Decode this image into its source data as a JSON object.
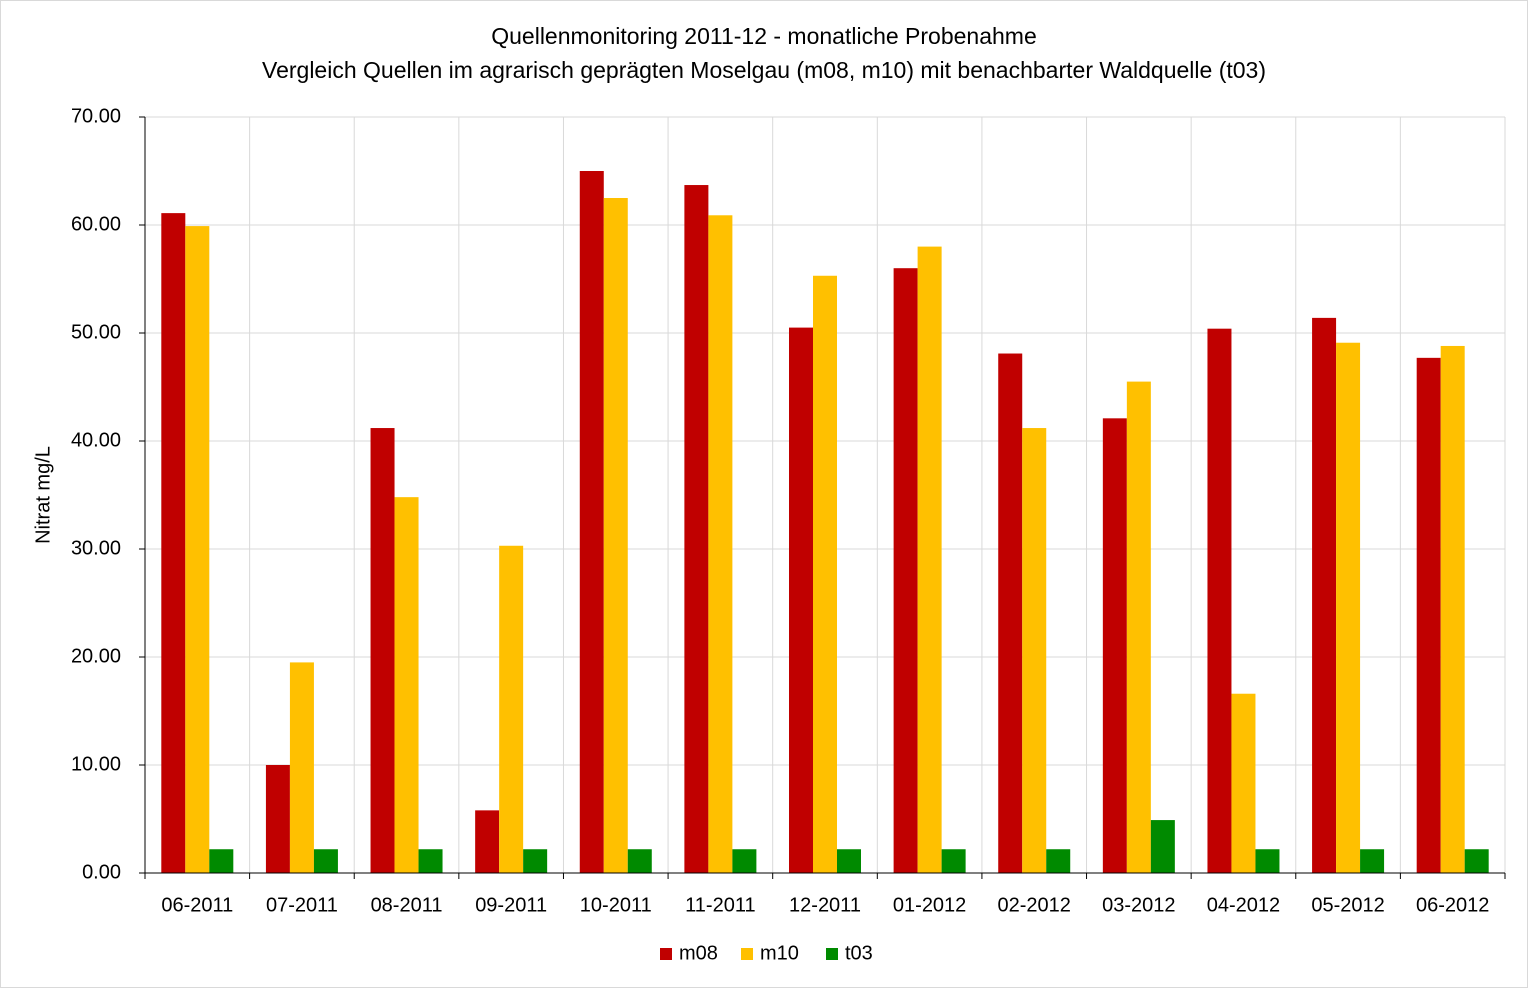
{
  "chart_data": {
    "type": "bar",
    "title": "Quellenmonitoring 2011-12 - monatliche Probenahme",
    "subtitle": "Vergleich Quellen im agrarisch geprägten Moselgau (m08, m10) mit benachbarter Waldquelle (t03)",
    "y_label": "Nitrat mg/L",
    "categories": [
      "06-2011",
      "07-2011",
      "08-2011",
      "09-2011",
      "10-2011",
      "11-2011",
      "12-2011",
      "01-2012",
      "02-2012",
      "03-2012",
      "04-2012",
      "05-2012",
      "06-2012"
    ],
    "series": [
      {
        "name": "m08",
        "color": "#c00000",
        "values": [
          61.1,
          10.0,
          41.2,
          5.8,
          65.0,
          63.7,
          50.5,
          56.0,
          48.1,
          42.1,
          50.4,
          51.4,
          47.7
        ]
      },
      {
        "name": "m10",
        "color": "#ffc000",
        "values": [
          59.9,
          19.5,
          34.8,
          30.3,
          62.5,
          60.9,
          55.3,
          58.0,
          41.2,
          45.5,
          16.6,
          49.1,
          48.8
        ]
      },
      {
        "name": "t03",
        "color": "#008a00",
        "values": [
          2.2,
          2.2,
          2.2,
          2.2,
          2.2,
          2.2,
          2.2,
          2.2,
          2.2,
          4.9,
          2.2,
          2.2,
          2.2
        ]
      }
    ],
    "ylim": [
      0,
      70
    ],
    "yticks": [
      {
        "value": 0,
        "label": "0.00"
      },
      {
        "value": 10,
        "label": "10.00"
      },
      {
        "value": 20,
        "label": "20.00"
      },
      {
        "value": 30,
        "label": "30.00"
      },
      {
        "value": 40,
        "label": "40.00"
      },
      {
        "value": 50,
        "label": "50.00"
      },
      {
        "value": 60,
        "label": "60.00"
      },
      {
        "value": 70,
        "label": "70.00"
      }
    ],
    "grid": true,
    "legend": "bottom"
  }
}
